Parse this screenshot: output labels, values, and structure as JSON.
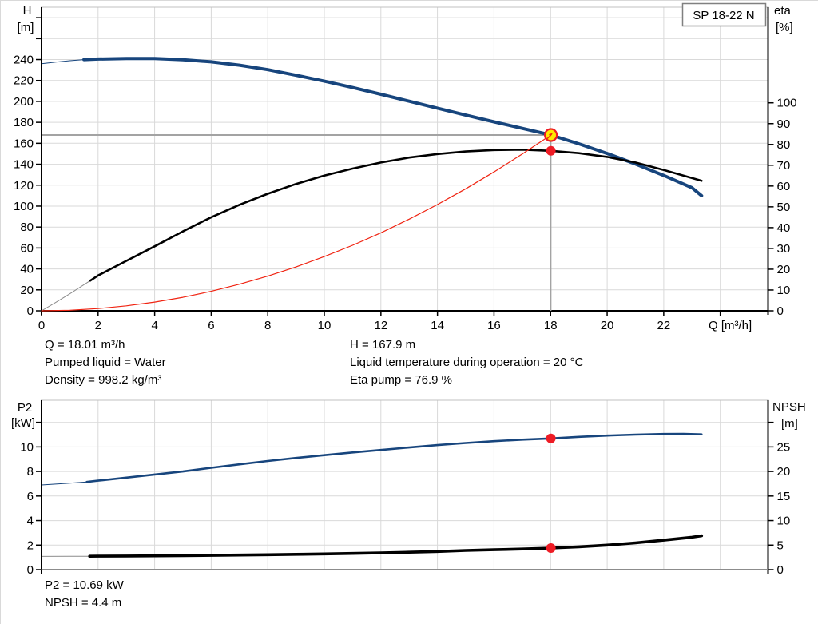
{
  "title_box": {
    "label": "SP 18-22 N"
  },
  "operating_point": {
    "q_m3h": 18.01,
    "h_m": 167.9,
    "eta_pct": 76.9,
    "p2_kw": 10.69,
    "npsh_m": 4.4
  },
  "annotations": {
    "left": [
      "Q = 18.01 m³/h",
      "Pumped liquid = Water",
      "Density = 998.2 kg/m³"
    ],
    "right": [
      "H = 167.9 m",
      "Liquid temperature during operation = 20 °C",
      "Eta pump = 76.9 %"
    ],
    "bottom": [
      "P2 = 10.69 kW",
      "NPSH = 4.4 m"
    ]
  },
  "colors": {
    "curve_blue": "#17457d",
    "curve_black": "#000000",
    "curve_red": "#f02311",
    "marker_red": "#ee1c25",
    "marker_yellow": "#ffe800",
    "grid": "#d9d9d9",
    "guide": "#a3a3a3",
    "thin_gray": "#8c8c8c"
  },
  "chart_data": [
    {
      "type": "line",
      "title": "SP 18-22 N",
      "xlabel": "Q [m³/h]",
      "x_range": [
        0,
        25.69
      ],
      "x_ticks": [
        0,
        2,
        4,
        6,
        8,
        10,
        12,
        14,
        16,
        18,
        20,
        22,
        24
      ],
      "x_tick_labeled_max": 22,
      "y_left": {
        "label_lines": [
          "H",
          "[m]"
        ],
        "range": [
          0,
          290
        ],
        "ticks": [
          0,
          20,
          40,
          60,
          80,
          100,
          120,
          140,
          160,
          180,
          200,
          220,
          240,
          260,
          280
        ],
        "tick_labeled_max": 240
      },
      "y_right": {
        "label_lines": [
          "eta",
          "[%]"
        ],
        "range": [
          0,
          146
        ],
        "ticks": [
          0,
          10,
          20,
          30,
          40,
          50,
          60,
          70,
          80,
          90,
          100
        ],
        "tick_labeled_max": 100
      },
      "guides": {
        "q_value": 18.01,
        "h_value": 167.9
      },
      "series": [
        {
          "name": "head",
          "axis": "left",
          "color": "#17457d",
          "width": 4,
          "thin_until": 1.5,
          "points": [
            [
              0,
              236
            ],
            [
              0.5,
              237.6
            ],
            [
              1,
              238.9
            ],
            [
              1.5,
              239.9
            ],
            [
              2,
              240.5
            ],
            [
              3,
              241
            ],
            [
              4,
              240.9
            ],
            [
              5,
              239.8
            ],
            [
              6,
              237.8
            ],
            [
              7,
              234.6
            ],
            [
              8,
              230.3
            ],
            [
              9,
              225
            ],
            [
              10,
              219.3
            ],
            [
              11,
              213.2
            ],
            [
              12,
              206.8
            ],
            [
              13,
              200.2
            ],
            [
              14,
              193.5
            ],
            [
              15,
              186.9
            ],
            [
              16,
              180.5
            ],
            [
              17,
              174.2
            ],
            [
              18.01,
              167.9
            ],
            [
              19,
              159.5
            ],
            [
              20,
              150.3
            ],
            [
              21,
              140.2
            ],
            [
              22,
              129.3
            ],
            [
              23,
              117.5
            ],
            [
              23.34,
              110
            ]
          ]
        },
        {
          "name": "efficiency",
          "axis": "right",
          "color": "#000000",
          "width": 2.6,
          "thin_until": 1.72,
          "thin_color": "#8c8c8c",
          "points": [
            [
              0,
              0
            ],
            [
              0.5,
              4
            ],
            [
              1,
              8.2
            ],
            [
              1.72,
              14.5
            ],
            [
              2,
              17
            ],
            [
              2.5,
              20.5
            ],
            [
              3,
              24
            ],
            [
              4,
              31
            ],
            [
              5,
              38.2
            ],
            [
              6,
              45
            ],
            [
              7,
              51
            ],
            [
              8,
              56.3
            ],
            [
              9,
              61
            ],
            [
              10,
              65
            ],
            [
              11,
              68.4
            ],
            [
              12,
              71.3
            ],
            [
              13,
              73.7
            ],
            [
              14,
              75.4
            ],
            [
              15,
              76.6
            ],
            [
              16,
              77.3
            ],
            [
              17,
              77.5
            ],
            [
              18.01,
              76.9
            ],
            [
              19,
              75.8
            ],
            [
              20,
              74
            ],
            [
              21,
              71.3
            ],
            [
              22,
              67.7
            ],
            [
              23.34,
              62.5
            ]
          ]
        },
        {
          "name": "system-curve",
          "axis": "left",
          "color": "#f02311",
          "width": 1.2,
          "points": [
            [
              0,
              0
            ],
            [
              1,
              0.5
            ],
            [
              2,
              2.1
            ],
            [
              3,
              4.7
            ],
            [
              4,
              8.3
            ],
            [
              5,
              12.9
            ],
            [
              6,
              18.6
            ],
            [
              7,
              25.4
            ],
            [
              8,
              33.1
            ],
            [
              9,
              41.9
            ],
            [
              10,
              51.8
            ],
            [
              11,
              62.6
            ],
            [
              12,
              74.5
            ],
            [
              13,
              87.5
            ],
            [
              14,
              101.5
            ],
            [
              15,
              116.5
            ],
            [
              16,
              132.6
            ],
            [
              17,
              149.7
            ],
            [
              18.01,
              167.9
            ]
          ]
        }
      ],
      "markers": [
        {
          "name": "duty-point",
          "q": 18.01,
          "value": 167.9,
          "axis": "left",
          "r": 7.5,
          "fill": "#ffe800",
          "stroke": "#ee1c25"
        },
        {
          "name": "eta-point",
          "q": 18.01,
          "value": 76.9,
          "axis": "right",
          "r": 6,
          "fill": "#ee1c25",
          "stroke": "none"
        }
      ]
    },
    {
      "type": "line",
      "title": "",
      "xlabel": "",
      "x_range": [
        0,
        25.69
      ],
      "x_ticks": [
        0,
        2,
        4,
        6,
        8,
        10,
        12,
        14,
        16,
        18,
        20,
        22,
        24
      ],
      "x_tick_labeled_max": -1,
      "y_left": {
        "label_lines": [
          "P2",
          "[kW]"
        ],
        "range": [
          0,
          13.8
        ],
        "ticks": [
          0,
          2,
          4,
          6,
          8,
          10,
          12
        ],
        "tick_labeled_max": 10
      },
      "y_right": {
        "label_lines": [
          "NPSH",
          "[m]"
        ],
        "range": [
          0,
          34.5
        ],
        "ticks": [
          0,
          5,
          10,
          15,
          20,
          25,
          30
        ],
        "tick_labeled_max": 25
      },
      "series": [
        {
          "name": "p2",
          "axis": "left",
          "color": "#17457d",
          "width": 2.6,
          "thin_until": 1.6,
          "points": [
            [
              0,
              6.9
            ],
            [
              1,
              7.05
            ],
            [
              1.6,
              7.15
            ],
            [
              2,
              7.25
            ],
            [
              3,
              7.5
            ],
            [
              4,
              7.75
            ],
            [
              5,
              8.0
            ],
            [
              6,
              8.3
            ],
            [
              7,
              8.58
            ],
            [
              8,
              8.85
            ],
            [
              9,
              9.1
            ],
            [
              10,
              9.33
            ],
            [
              11,
              9.55
            ],
            [
              12,
              9.75
            ],
            [
              13,
              9.95
            ],
            [
              14,
              10.15
            ],
            [
              15,
              10.32
            ],
            [
              16,
              10.47
            ],
            [
              17,
              10.59
            ],
            [
              18.01,
              10.69
            ],
            [
              19,
              10.82
            ],
            [
              20,
              10.92
            ],
            [
              21,
              11.0
            ],
            [
              22,
              11.05
            ],
            [
              22.7,
              11.06
            ],
            [
              23.34,
              11.02
            ]
          ]
        },
        {
          "name": "npsh",
          "axis": "right",
          "color": "#000000",
          "width": 3.6,
          "thin_until": 1.7,
          "thin_color": "#8c8c8c",
          "points": [
            [
              0,
              2.7
            ],
            [
              1,
              2.72
            ],
            [
              1.7,
              2.73
            ],
            [
              2,
              2.75
            ],
            [
              3,
              2.78
            ],
            [
              4,
              2.82
            ],
            [
              5,
              2.87
            ],
            [
              6,
              2.92
            ],
            [
              7,
              2.98
            ],
            [
              8,
              3.05
            ],
            [
              9,
              3.12
            ],
            [
              10,
              3.2
            ],
            [
              11,
              3.3
            ],
            [
              12,
              3.42
            ],
            [
              13,
              3.55
            ],
            [
              14,
              3.7
            ],
            [
              15,
              3.9
            ],
            [
              16,
              4.05
            ],
            [
              17,
              4.2
            ],
            [
              18.01,
              4.4
            ],
            [
              19,
              4.65
            ],
            [
              20,
              5.0
            ],
            [
              21,
              5.45
            ],
            [
              22,
              6.0
            ],
            [
              23,
              6.6
            ],
            [
              23.34,
              6.9
            ]
          ]
        }
      ],
      "markers": [
        {
          "name": "p2-point",
          "q": 18.01,
          "value": 10.69,
          "axis": "left",
          "r": 6,
          "fill": "#ee1c25",
          "stroke": "none"
        },
        {
          "name": "npsh-point",
          "q": 18.01,
          "value": 4.4,
          "axis": "right",
          "r": 6,
          "fill": "#ee1c25",
          "stroke": "none"
        }
      ]
    }
  ]
}
